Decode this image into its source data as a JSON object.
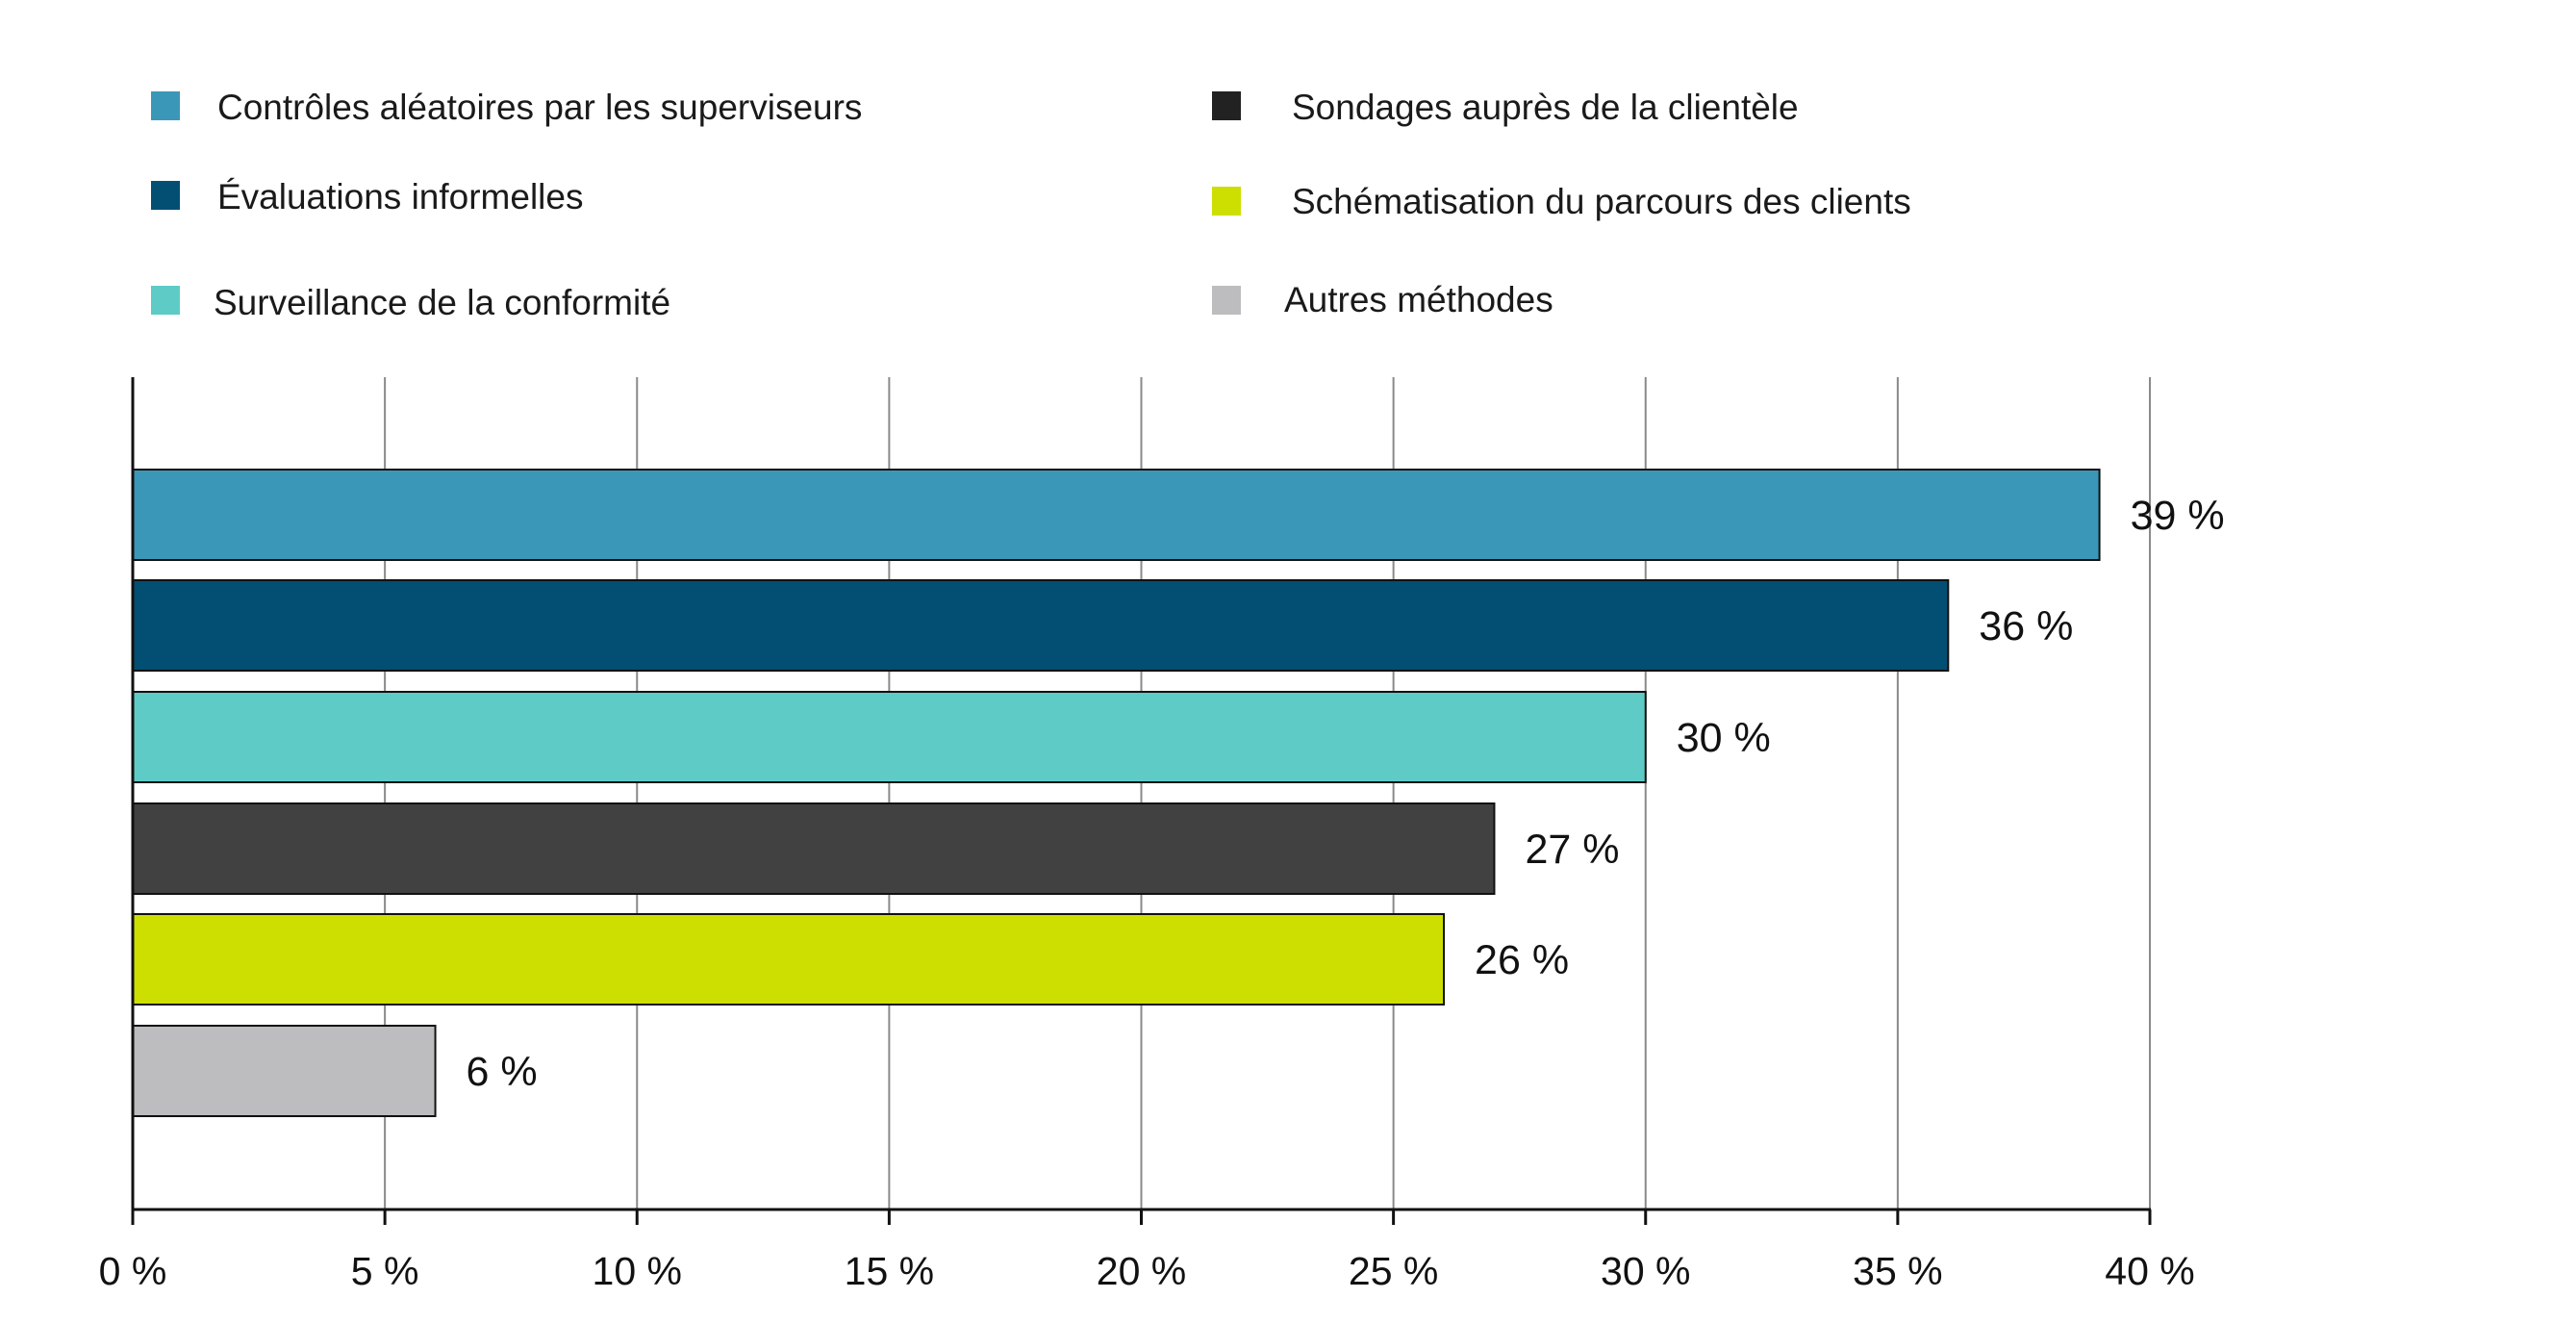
{
  "chart_data": {
    "type": "bar",
    "orientation": "horizontal",
    "title": "",
    "xlabel": "",
    "ylabel": "",
    "xlim": [
      0,
      40
    ],
    "x_ticks": [
      0,
      5,
      10,
      15,
      20,
      25,
      30,
      35,
      40
    ],
    "x_tick_labels": [
      "0 %",
      "5 %",
      "10 %",
      "15 %",
      "20 %",
      "25 %",
      "30 %",
      "35 %",
      "40 %"
    ],
    "grid": true,
    "legend_placement": "top",
    "categories": [
      "Contrôles aléatoires par les superviseurs",
      "Évaluations informelles",
      "Surveillance de la conformité",
      "Sondages auprès de la clientèle",
      "Schématisation du parcours des clients",
      "Autres méthodes"
    ],
    "values": [
      39,
      36,
      30,
      27,
      26,
      6
    ],
    "value_labels": [
      "39 %",
      "36 %",
      "30 %",
      "27 %",
      "26 %",
      "6 %"
    ],
    "colors": [
      "#3b97b8",
      "#034e73",
      "#5ecbc6",
      "#414141",
      "#cddf00",
      "#bdbdbf"
    ],
    "legend_swatch_colors": [
      "#3b97b8",
      "#034e73",
      "#5ecbc6",
      "#222222",
      "#cddf00",
      "#bdbdbf"
    ]
  }
}
